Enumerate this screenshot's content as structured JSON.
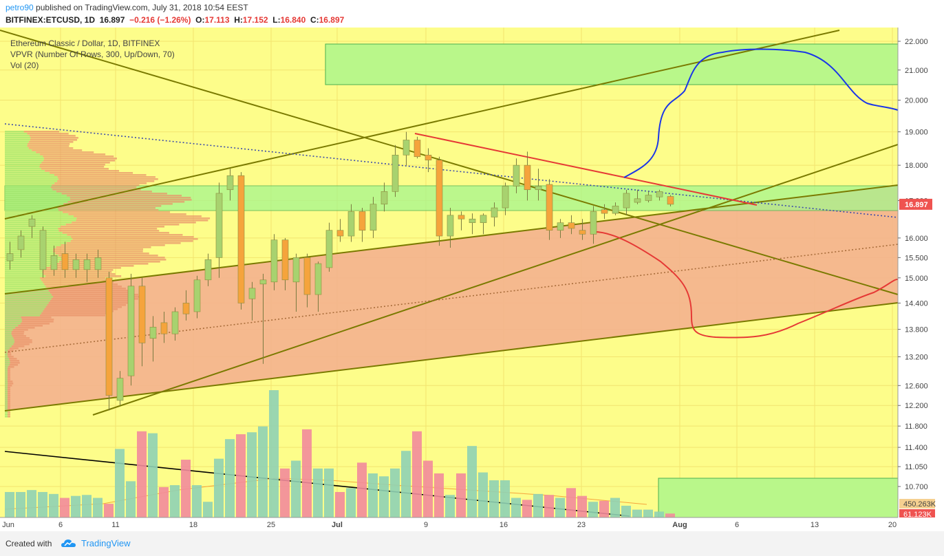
{
  "header": {
    "author": "petro90",
    "published_text": "published on TradingView.com, July 31, 2018 10:54 EEST",
    "symbol": "BITFINEX:ETCUSD, 1D",
    "last": "16.897",
    "change": "−0.216 (−1.26%)",
    "open_label": "O:",
    "open": "17.113",
    "high_label": "H:",
    "high": "17.152",
    "low_label": "L:",
    "low": "16.840",
    "close_label": "C:",
    "close": "16.897"
  },
  "legend": {
    "title": "Ethereum Classic / Dollar, 1D, BITFINEX",
    "vpvr": "VPVR (Number Of Rows, 300, Up/Down, 70)",
    "vol": "Vol (20)"
  },
  "footer": {
    "created_with": "Created with",
    "brand": "TradingView"
  },
  "colors": {
    "background": "#fdfd8a",
    "up_candle": "#a8d26f",
    "down_candle": "#f5a43c",
    "green_zone": "#b9f78a",
    "orange_channel": "#f4b18e",
    "price_label_bg": "#ef5350",
    "vol_up": "#8fd1b4",
    "vol_down": "#f28b9b"
  },
  "chart_data": {
    "type": "candlestick",
    "title": "Ethereum Classic / Dollar, 1D, BITFINEX",
    "x_ticks": [
      "Jun",
      "6",
      "11",
      "18",
      "25",
      "Jul",
      "9",
      "16",
      "23",
      "Aug",
      "6",
      "13",
      "20"
    ],
    "y_ticks": [
      "22.000",
      "21.000",
      "20.000",
      "19.000",
      "18.000",
      "17.000",
      "16.000",
      "15.500",
      "15.000",
      "14.400",
      "13.800",
      "13.200",
      "12.600",
      "12.200",
      "11.800",
      "11.400",
      "11.050",
      "10.700"
    ],
    "last_price_label": "16.897",
    "volume_labels": [
      "450.263K",
      "61.123K"
    ],
    "candles": [
      {
        "o": 15.42,
        "h": 15.9,
        "l": 15.2,
        "c": 15.6
      },
      {
        "o": 15.7,
        "h": 16.2,
        "l": 15.5,
        "c": 16.05
      },
      {
        "o": 16.3,
        "h": 16.6,
        "l": 16.0,
        "c": 16.5
      },
      {
        "o": 15.2,
        "h": 16.3,
        "l": 15.0,
        "c": 16.2
      },
      {
        "o": 15.2,
        "h": 15.8,
        "l": 15.05,
        "c": 15.55
      },
      {
        "o": 15.6,
        "h": 15.9,
        "l": 15.0,
        "c": 15.2
      },
      {
        "o": 15.2,
        "h": 15.6,
        "l": 15.0,
        "c": 15.45
      },
      {
        "o": 15.2,
        "h": 15.6,
        "l": 14.9,
        "c": 15.45
      },
      {
        "o": 15.2,
        "h": 15.7,
        "l": 15.0,
        "c": 15.5
      },
      {
        "o": 15.0,
        "h": 15.15,
        "l": 12.1,
        "c": 12.4
      },
      {
        "o": 12.3,
        "h": 12.9,
        "l": 12.2,
        "c": 12.75
      },
      {
        "o": 12.8,
        "h": 15.1,
        "l": 12.6,
        "c": 14.8
      },
      {
        "o": 14.8,
        "h": 15.0,
        "l": 13.0,
        "c": 13.5
      },
      {
        "o": 13.6,
        "h": 14.1,
        "l": 13.1,
        "c": 13.85
      },
      {
        "o": 13.95,
        "h": 14.2,
        "l": 13.5,
        "c": 13.7
      },
      {
        "o": 13.7,
        "h": 14.3,
        "l": 13.55,
        "c": 14.2
      },
      {
        "o": 14.4,
        "h": 14.7,
        "l": 14.0,
        "c": 14.15
      },
      {
        "o": 14.2,
        "h": 15.05,
        "l": 14.05,
        "c": 14.95
      },
      {
        "o": 14.95,
        "h": 15.6,
        "l": 14.8,
        "c": 15.45
      },
      {
        "o": 15.5,
        "h": 17.5,
        "l": 15.0,
        "c": 17.2
      },
      {
        "o": 17.3,
        "h": 17.9,
        "l": 17.0,
        "c": 17.7
      },
      {
        "o": 17.7,
        "h": 17.8,
        "l": 14.25,
        "c": 14.4
      },
      {
        "o": 14.5,
        "h": 14.9,
        "l": 14.0,
        "c": 14.75
      },
      {
        "o": 14.85,
        "h": 15.1,
        "l": 13.05,
        "c": 14.95
      },
      {
        "o": 14.9,
        "h": 16.1,
        "l": 14.7,
        "c": 15.95
      },
      {
        "o": 15.95,
        "h": 16.0,
        "l": 14.7,
        "c": 14.95
      },
      {
        "o": 14.9,
        "h": 15.6,
        "l": 14.2,
        "c": 15.5
      },
      {
        "o": 15.5,
        "h": 15.6,
        "l": 14.3,
        "c": 14.6
      },
      {
        "o": 14.6,
        "h": 15.4,
        "l": 14.2,
        "c": 15.35
      },
      {
        "o": 15.25,
        "h": 16.4,
        "l": 15.15,
        "c": 16.2
      },
      {
        "o": 16.2,
        "h": 16.5,
        "l": 15.9,
        "c": 16.05
      },
      {
        "o": 16.05,
        "h": 16.9,
        "l": 15.9,
        "c": 16.7
      },
      {
        "o": 16.7,
        "h": 16.8,
        "l": 15.9,
        "c": 16.2
      },
      {
        "o": 16.2,
        "h": 17.1,
        "l": 16.0,
        "c": 16.9
      },
      {
        "o": 16.9,
        "h": 17.5,
        "l": 16.7,
        "c": 17.25
      },
      {
        "o": 17.25,
        "h": 18.6,
        "l": 17.1,
        "c": 18.3
      },
      {
        "o": 18.3,
        "h": 19.0,
        "l": 18.0,
        "c": 18.75
      },
      {
        "o": 18.75,
        "h": 18.85,
        "l": 18.2,
        "c": 18.25
      },
      {
        "o": 18.3,
        "h": 18.5,
        "l": 17.8,
        "c": 18.15
      },
      {
        "o": 18.15,
        "h": 18.25,
        "l": 15.8,
        "c": 16.05
      },
      {
        "o": 16.05,
        "h": 16.8,
        "l": 15.75,
        "c": 16.6
      },
      {
        "o": 16.6,
        "h": 16.7,
        "l": 16.2,
        "c": 16.5
      },
      {
        "o": 16.4,
        "h": 16.65,
        "l": 16.1,
        "c": 16.5
      },
      {
        "o": 16.4,
        "h": 16.65,
        "l": 16.1,
        "c": 16.6
      },
      {
        "o": 16.55,
        "h": 16.95,
        "l": 16.3,
        "c": 16.8
      },
      {
        "o": 16.8,
        "h": 17.5,
        "l": 16.6,
        "c": 17.4
      },
      {
        "o": 17.4,
        "h": 18.2,
        "l": 17.2,
        "c": 18.0
      },
      {
        "o": 18.0,
        "h": 18.4,
        "l": 17.0,
        "c": 17.3
      },
      {
        "o": 17.3,
        "h": 17.9,
        "l": 17.0,
        "c": 17.4
      },
      {
        "o": 17.45,
        "h": 17.6,
        "l": 15.95,
        "c": 16.2
      },
      {
        "o": 16.2,
        "h": 16.5,
        "l": 16.0,
        "c": 16.4
      },
      {
        "o": 16.4,
        "h": 16.6,
        "l": 16.1,
        "c": 16.25
      },
      {
        "o": 16.2,
        "h": 16.5,
        "l": 15.95,
        "c": 16.1
      },
      {
        "o": 16.1,
        "h": 16.85,
        "l": 15.85,
        "c": 16.7
      },
      {
        "o": 16.75,
        "h": 16.9,
        "l": 16.5,
        "c": 16.65
      },
      {
        "o": 16.65,
        "h": 16.95,
        "l": 16.6,
        "c": 16.85
      },
      {
        "o": 16.8,
        "h": 17.3,
        "l": 16.6,
        "c": 17.2
      },
      {
        "o": 16.95,
        "h": 17.3,
        "l": 16.9,
        "c": 17.05
      },
      {
        "o": 17.0,
        "h": 17.25,
        "l": 16.95,
        "c": 17.15
      },
      {
        "o": 17.1,
        "h": 17.3,
        "l": 17.0,
        "c": 17.25
      },
      {
        "o": 17.113,
        "h": 17.152,
        "l": 16.84,
        "c": 16.897
      }
    ],
    "volume_values": [
      260,
      260,
      280,
      260,
      240,
      200,
      220,
      230,
      200,
      140,
      700,
      370,
      880,
      860,
      310,
      330,
      590,
      330,
      160,
      600,
      800,
      850,
      870,
      930,
      1300,
      500,
      580,
      900,
      500,
      500,
      260,
      300,
      560,
      450,
      420,
      500,
      680,
      880,
      580,
      450,
      230,
      450,
      730,
      460,
      380,
      380,
      200,
      180,
      240,
      230,
      200,
      300,
      220,
      160,
      170,
      200,
      120,
      80,
      80,
      60,
      40
    ]
  }
}
